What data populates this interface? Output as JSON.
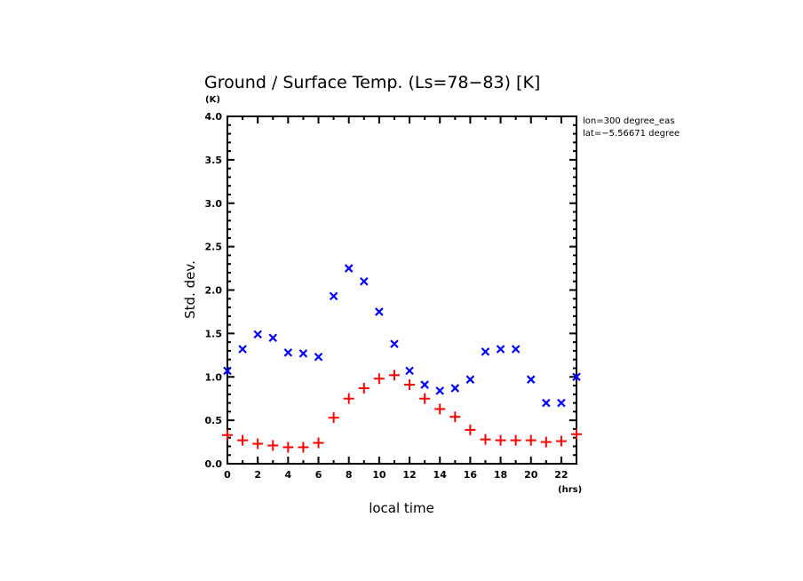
{
  "chart_data": {
    "type": "scatter",
    "title": "Ground / Surface Temp. (Ls=78−83) [K]",
    "y_unit": "(K)",
    "x_unit": "(hrs)",
    "xlabel": "local time",
    "ylabel": "Std. dev.",
    "xlim": [
      0,
      23
    ],
    "ylim": [
      0,
      4.0
    ],
    "x_ticks": [
      0,
      2,
      4,
      6,
      8,
      10,
      12,
      14,
      16,
      18,
      20,
      22
    ],
    "x_tick_labels": [
      "0",
      "2",
      "4",
      "6",
      "8",
      "10",
      "12",
      "14",
      "16",
      "18",
      "20",
      "22"
    ],
    "x_minor_step": 1,
    "y_ticks": [
      0.0,
      0.5,
      1.0,
      1.5,
      2.0,
      2.5,
      3.0,
      3.5,
      4.0
    ],
    "y_tick_labels": [
      "0.0",
      "0.5",
      "1.0",
      "1.5",
      "2.0",
      "2.5",
      "3.0",
      "3.5",
      "4.0"
    ],
    "y_minor_step": 0.1,
    "grid": false,
    "annotations": [
      "lon=300 degree_eas",
      "lat=−5.56671 degree"
    ],
    "annotation_placement": "top-right outside",
    "x": [
      0,
      1,
      2,
      3,
      4,
      5,
      6,
      7,
      8,
      9,
      10,
      11,
      12,
      13,
      14,
      15,
      16,
      17,
      18,
      19,
      20,
      21,
      22,
      23
    ],
    "series": [
      {
        "name": "blue-x",
        "marker": "x",
        "color": "#0000ff",
        "values": [
          1.07,
          1.32,
          1.49,
          1.45,
          1.28,
          1.27,
          1.23,
          1.93,
          2.25,
          2.1,
          1.75,
          1.38,
          1.07,
          0.91,
          0.84,
          0.87,
          0.97,
          1.29,
          1.32,
          1.32,
          0.97,
          0.7,
          0.7,
          1.0
        ]
      },
      {
        "name": "red-plus",
        "marker": "+",
        "color": "#ff0000",
        "values": [
          0.33,
          0.27,
          0.23,
          0.21,
          0.19,
          0.19,
          0.24,
          0.53,
          0.75,
          0.87,
          0.98,
          1.02,
          0.91,
          0.75,
          0.63,
          0.54,
          0.39,
          0.28,
          0.27,
          0.27,
          0.27,
          0.25,
          0.26,
          0.34
        ]
      }
    ]
  }
}
